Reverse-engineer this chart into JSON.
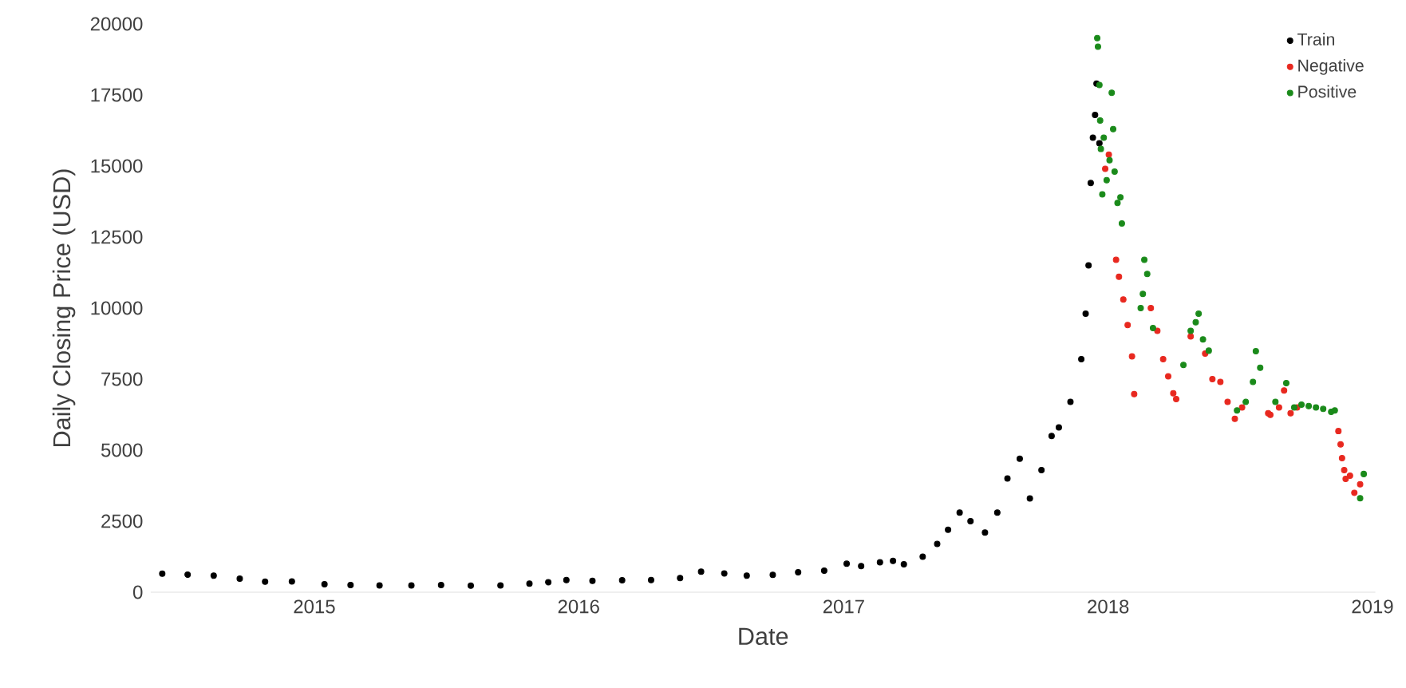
{
  "chart_data": {
    "type": "scatter",
    "xlabel": "Date",
    "ylabel": "Daily Closing Price (USD)",
    "xlim": [
      "2014-05-20",
      "2019-01-05"
    ],
    "xticks": [
      "2015",
      "2016",
      "2017",
      "2018",
      "2019"
    ],
    "ylim": [
      0,
      20000
    ],
    "yticks": [
      0,
      2500,
      5000,
      7500,
      10000,
      12500,
      15000,
      17500,
      20000
    ],
    "grid": false,
    "legend": "top right",
    "marker": "circle",
    "series": [
      {
        "name": "Train",
        "color": "#000000",
        "x": [
          "2014-06-05",
          "2014-07-10",
          "2014-08-15",
          "2014-09-20",
          "2014-10-25",
          "2014-12-01",
          "2015-01-15",
          "2015-02-20",
          "2015-04-01",
          "2015-05-15",
          "2015-06-25",
          "2015-08-05",
          "2015-09-15",
          "2015-10-25",
          "2015-11-20",
          "2015-12-15",
          "2016-01-20",
          "2016-03-01",
          "2016-04-10",
          "2016-05-20",
          "2016-06-18",
          "2016-07-20",
          "2016-08-20",
          "2016-09-25",
          "2016-10-30",
          "2016-12-05",
          "2017-01-05",
          "2017-01-25",
          "2017-02-20",
          "2017-03-10",
          "2017-03-25",
          "2017-04-20",
          "2017-05-10",
          "2017-05-25",
          "2017-06-10",
          "2017-06-25",
          "2017-07-15",
          "2017-08-01",
          "2017-08-15",
          "2017-09-01",
          "2017-09-15",
          "2017-10-01",
          "2017-10-15",
          "2017-10-25",
          "2017-11-10",
          "2017-11-25",
          "2017-12-01",
          "2017-12-05",
          "2017-12-08",
          "2017-12-11",
          "2017-12-14",
          "2017-12-16",
          "2017-12-20"
        ],
        "values": [
          650,
          620,
          580,
          480,
          370,
          380,
          280,
          250,
          240,
          240,
          250,
          230,
          240,
          300,
          350,
          430,
          400,
          420,
          430,
          500,
          720,
          660,
          580,
          610,
          700,
          760,
          1000,
          920,
          1050,
          1100,
          980,
          1250,
          1700,
          2200,
          2800,
          2500,
          2100,
          2800,
          4000,
          4700,
          3300,
          4300,
          5500,
          5800,
          6700,
          8200,
          9800,
          11500,
          14400,
          16000,
          16800,
          17900,
          15800
        ]
      },
      {
        "name": "Negative",
        "color": "#e8281f",
        "x": [
          "2017-12-28",
          "2018-01-02",
          "2018-01-12",
          "2018-01-16",
          "2018-01-22",
          "2018-01-28",
          "2018-02-03",
          "2018-02-06",
          "2018-03-01",
          "2018-03-10",
          "2018-03-18",
          "2018-03-25",
          "2018-04-01",
          "2018-04-05",
          "2018-04-25",
          "2018-05-15",
          "2018-05-25",
          "2018-06-05",
          "2018-06-15",
          "2018-06-25",
          "2018-07-05",
          "2018-08-10",
          "2018-08-13",
          "2018-08-25",
          "2018-09-01",
          "2018-09-10",
          "2018-09-19",
          "2018-11-15",
          "2018-11-18",
          "2018-11-20",
          "2018-11-23",
          "2018-11-25",
          "2018-12-01",
          "2018-12-07",
          "2018-12-15"
        ],
        "values": [
          14900,
          15400,
          11700,
          11100,
          10300,
          9400,
          8300,
          6970,
          10000,
          9200,
          8200,
          7600,
          7000,
          6800,
          9000,
          8400,
          7500,
          7400,
          6700,
          6100,
          6500,
          6300,
          6240,
          6500,
          7100,
          6300,
          6500,
          5670,
          5200,
          4720,
          4300,
          3990,
          4100,
          3500,
          3800
        ]
      },
      {
        "name": "Positive",
        "color": "#1a8a1a",
        "x": [
          "2017-12-17",
          "2017-12-18",
          "2017-12-20",
          "2017-12-21",
          "2017-12-22",
          "2017-12-24",
          "2017-12-26",
          "2017-12-30",
          "2018-01-03",
          "2018-01-06",
          "2018-01-08",
          "2018-01-10",
          "2018-01-14",
          "2018-01-20",
          "2018-01-18",
          "2018-02-15",
          "2018-02-18",
          "2018-02-20",
          "2018-02-24",
          "2018-03-04",
          "2018-04-15",
          "2018-04-25",
          "2018-05-02",
          "2018-05-06",
          "2018-05-12",
          "2018-05-20",
          "2018-06-28",
          "2018-07-10",
          "2018-07-20",
          "2018-07-24",
          "2018-07-30",
          "2018-08-20",
          "2018-09-04",
          "2018-09-15",
          "2018-09-25",
          "2018-10-05",
          "2018-10-15",
          "2018-10-25",
          "2018-11-05",
          "2018-11-10",
          "2018-12-15",
          "2018-12-20"
        ],
        "values": [
          19500,
          19200,
          17850,
          16600,
          15600,
          14000,
          16000,
          14500,
          15200,
          17580,
          16300,
          14800,
          13700,
          12980,
          13900,
          10000,
          10500,
          11700,
          11200,
          9300,
          8000,
          9200,
          9500,
          9800,
          8900,
          8500,
          6400,
          6700,
          7400,
          8480,
          7900,
          6700,
          7360,
          6500,
          6600,
          6550,
          6500,
          6450,
          6350,
          6400,
          3310,
          4160
        ]
      }
    ]
  }
}
